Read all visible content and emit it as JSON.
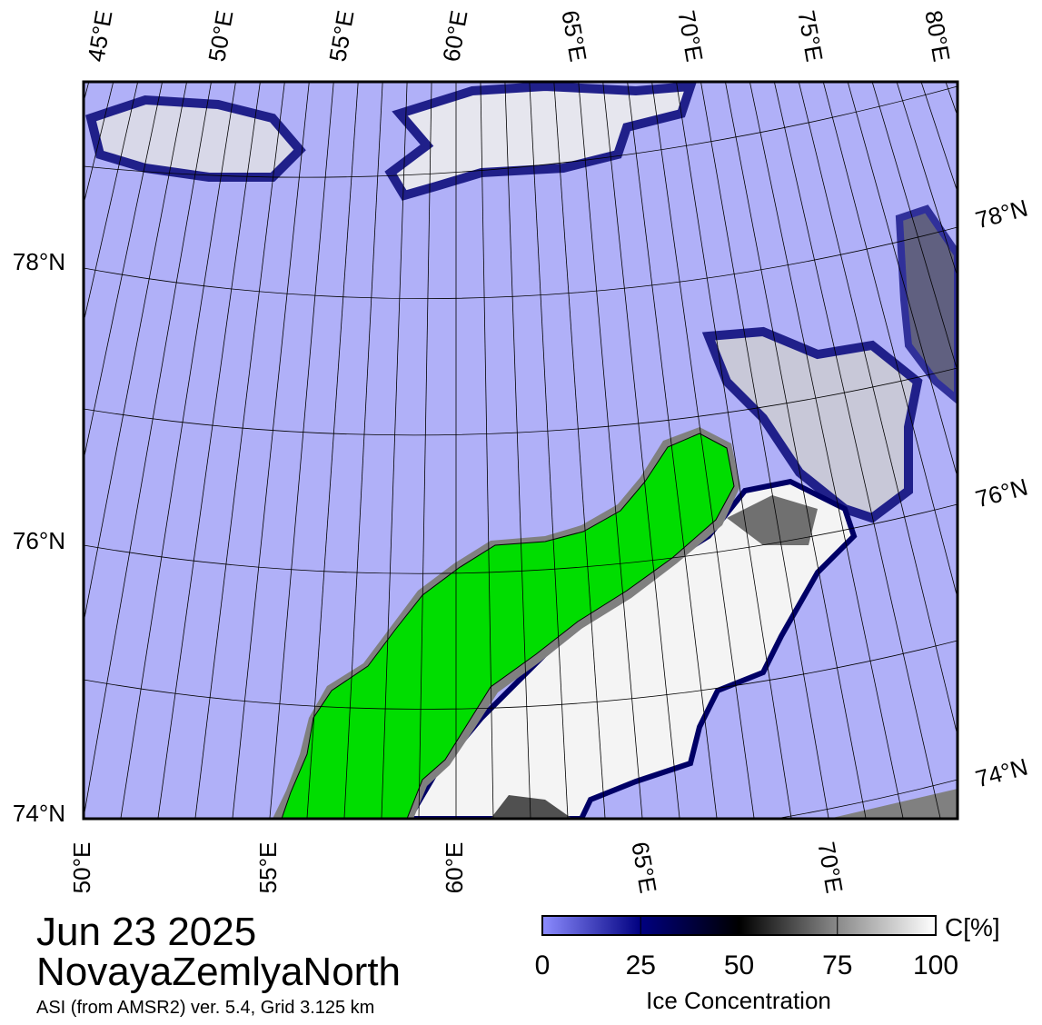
{
  "map": {
    "top_lon_labels": [
      "45°E",
      "50°E",
      "55°E",
      "60°E",
      "65°E",
      "70°E",
      "75°E",
      "80°E"
    ],
    "bottom_lon_labels": [
      "50°E",
      "55°E",
      "60°E",
      "65°E",
      "70°E"
    ],
    "left_lat_labels": [
      "78°N",
      "76°N",
      "74°N"
    ],
    "right_lat_labels": [
      "78°N",
      "76°N",
      "74°N"
    ]
  },
  "header": {
    "date": "Jun 23 2025",
    "region": "NovayaZemlyaNorth",
    "subtitle": "ASI (from AMSR2) ver. 5.4,  Grid 3.125 km"
  },
  "colorbar": {
    "range": [
      0,
      100
    ],
    "ticks": [
      0,
      25,
      50,
      75,
      100
    ],
    "unit": "C[%]",
    "title": "Ice Concentration"
  }
}
